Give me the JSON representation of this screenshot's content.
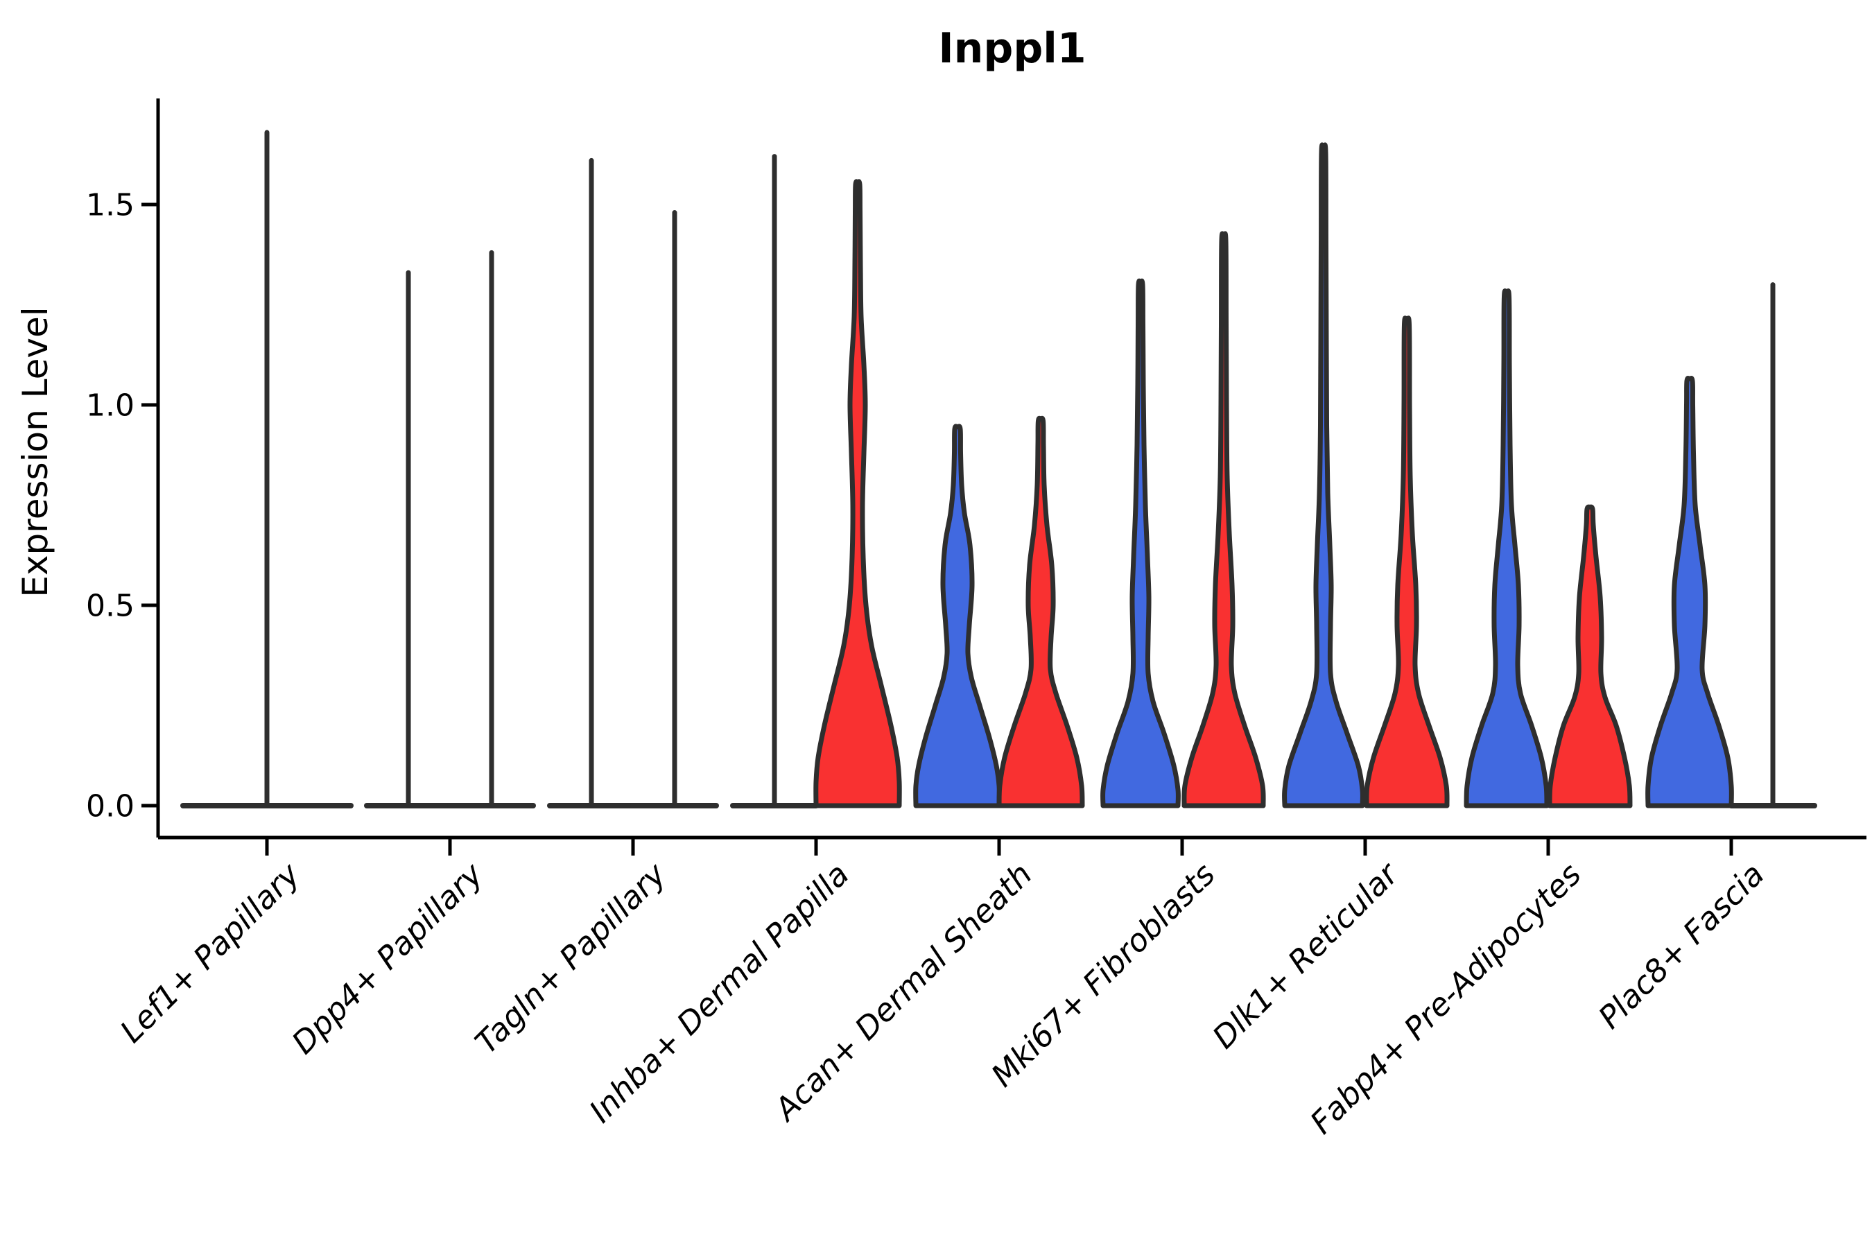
{
  "chart_data": {
    "type": "violin",
    "title": "Inppl1",
    "ylabel": "Expression Level",
    "xlabel": "",
    "ytick_labels": [
      "0.0",
      "0.5",
      "1.0",
      "1.5"
    ],
    "ytick_values": [
      0.0,
      0.5,
      1.0,
      1.5
    ],
    "ylim": [
      -0.08,
      1.77
    ],
    "grid": false,
    "legend": null,
    "colors": {
      "group_a_fill": "#4169E0",
      "group_b_fill": "#F93131",
      "outline": "#2E2E2E",
      "axis": "#000000"
    },
    "note": "Split violin plot; per category: left violin = group A (blue), right violin = group B (red); collapsed violins are near-zero-width spikes. max = top of each violin (max expression).",
    "categories": [
      {
        "label": "Lef1+ Papillary",
        "violins": [
          {
            "side": "full",
            "kind": "collapsed",
            "color": "none",
            "max": 1.68,
            "base_hw": 121
          }
        ]
      },
      {
        "label": "Dpp4+ Papillary",
        "violins": [
          {
            "side": "left",
            "kind": "collapsed",
            "color": "blue",
            "max": 1.33,
            "base_hw": 60
          },
          {
            "side": "right",
            "kind": "collapsed",
            "color": "red",
            "max": 1.38,
            "base_hw": 60
          }
        ]
      },
      {
        "label": "Tagln+ Papillary",
        "violins": [
          {
            "side": "left",
            "kind": "collapsed",
            "color": "blue",
            "max": 1.61,
            "base_hw": 60
          },
          {
            "side": "right",
            "kind": "collapsed",
            "color": "red",
            "max": 1.48,
            "base_hw": 60
          }
        ]
      },
      {
        "label": "Inhba+ Dermal Papilla",
        "violins": [
          {
            "side": "left",
            "kind": "collapsed",
            "color": "blue",
            "max": 1.62,
            "base_hw": 60
          },
          {
            "side": "right",
            "kind": "body",
            "color": "red",
            "max": 1.55,
            "profile": [
              [
                0,
                60
              ],
              [
                0.06,
                60
              ],
              [
                0.12,
                57
              ],
              [
                0.2,
                48
              ],
              [
                0.3,
                34
              ],
              [
                0.4,
                20
              ],
              [
                0.5,
                12
              ],
              [
                0.62,
                8
              ],
              [
                0.75,
                7
              ],
              [
                0.88,
                9
              ],
              [
                1.0,
                11
              ],
              [
                1.1,
                9
              ],
              [
                1.22,
                5
              ],
              [
                1.35,
                4
              ],
              [
                1.48,
                3.5
              ],
              [
                1.55,
                3
              ]
            ]
          }
        ]
      },
      {
        "label": "Acan+ Dermal Sheath",
        "violins": [
          {
            "side": "left",
            "kind": "body",
            "color": "blue",
            "max": 0.94,
            "profile": [
              [
                0,
                60
              ],
              [
                0.05,
                60
              ],
              [
                0.1,
                56
              ],
              [
                0.17,
                46
              ],
              [
                0.25,
                32
              ],
              [
                0.32,
                20
              ],
              [
                0.38,
                15
              ],
              [
                0.45,
                17
              ],
              [
                0.55,
                21
              ],
              [
                0.65,
                18
              ],
              [
                0.73,
                10
              ],
              [
                0.8,
                6
              ],
              [
                0.88,
                4.5
              ],
              [
                0.94,
                4
              ]
            ]
          },
          {
            "side": "right",
            "kind": "body",
            "color": "red",
            "max": 0.96,
            "profile": [
              [
                0,
                60
              ],
              [
                0.05,
                59
              ],
              [
                0.12,
                52
              ],
              [
                0.2,
                38
              ],
              [
                0.28,
                22
              ],
              [
                0.34,
                14
              ],
              [
                0.42,
                15
              ],
              [
                0.5,
                18
              ],
              [
                0.6,
                16
              ],
              [
                0.7,
                9
              ],
              [
                0.8,
                5
              ],
              [
                0.9,
                4
              ],
              [
                0.96,
                3.5
              ]
            ]
          }
        ]
      },
      {
        "label": "Mki67+ Fibroblasts",
        "violins": [
          {
            "side": "left",
            "kind": "body",
            "color": "blue",
            "max": 1.3,
            "profile": [
              [
                0,
                54
              ],
              [
                0.04,
                54
              ],
              [
                0.1,
                48
              ],
              [
                0.18,
                34
              ],
              [
                0.26,
                18
              ],
              [
                0.33,
                11
              ],
              [
                0.42,
                11
              ],
              [
                0.52,
                12
              ],
              [
                0.62,
                10
              ],
              [
                0.75,
                7
              ],
              [
                0.9,
                5
              ],
              [
                1.05,
                4
              ],
              [
                1.2,
                3.5
              ],
              [
                1.3,
                3
              ]
            ]
          },
          {
            "side": "right",
            "kind": "body",
            "color": "red",
            "max": 1.41,
            "profile": [
              [
                0,
                57
              ],
              [
                0.05,
                56
              ],
              [
                0.12,
                46
              ],
              [
                0.2,
                30
              ],
              [
                0.28,
                16
              ],
              [
                0.35,
                11
              ],
              [
                0.45,
                13
              ],
              [
                0.55,
                12
              ],
              [
                0.68,
                8
              ],
              [
                0.82,
                5
              ],
              [
                1.0,
                4
              ],
              [
                1.2,
                3.5
              ],
              [
                1.41,
                3
              ]
            ]
          }
        ]
      },
      {
        "label": "Dlk1+ Reticular",
        "violins": [
          {
            "side": "left",
            "kind": "body",
            "color": "blue",
            "max": 1.63,
            "profile": [
              [
                0,
                56
              ],
              [
                0.04,
                56
              ],
              [
                0.1,
                50
              ],
              [
                0.18,
                34
              ],
              [
                0.26,
                18
              ],
              [
                0.33,
                10
              ],
              [
                0.45,
                10
              ],
              [
                0.55,
                11
              ],
              [
                0.65,
                9
              ],
              [
                0.78,
                6
              ],
              [
                0.95,
                4.5
              ],
              [
                1.15,
                4
              ],
              [
                1.4,
                3.5
              ],
              [
                1.63,
                3
              ]
            ]
          },
          {
            "side": "right",
            "kind": "body",
            "color": "red",
            "max": 1.2,
            "profile": [
              [
                0,
                58
              ],
              [
                0.05,
                57
              ],
              [
                0.12,
                48
              ],
              [
                0.2,
                32
              ],
              [
                0.28,
                17
              ],
              [
                0.35,
                12
              ],
              [
                0.45,
                14
              ],
              [
                0.55,
                13
              ],
              [
                0.68,
                8
              ],
              [
                0.82,
                5
              ],
              [
                1.0,
                4
              ],
              [
                1.2,
                3.5
              ]
            ]
          }
        ]
      },
      {
        "label": "Fabp4+ Pre-Adipocytes",
        "violins": [
          {
            "side": "left",
            "kind": "body",
            "color": "blue",
            "max": 1.27,
            "profile": [
              [
                0,
                58
              ],
              [
                0.05,
                57
              ],
              [
                0.12,
                50
              ],
              [
                0.2,
                36
              ],
              [
                0.28,
                20
              ],
              [
                0.35,
                16
              ],
              [
                0.45,
                18
              ],
              [
                0.55,
                17
              ],
              [
                0.65,
                12
              ],
              [
                0.75,
                7
              ],
              [
                0.9,
                5
              ],
              [
                1.1,
                4
              ],
              [
                1.27,
                3.5
              ]
            ]
          },
          {
            "side": "right",
            "kind": "body",
            "color": "red",
            "max": 0.74,
            "profile": [
              [
                0,
                58
              ],
              [
                0.05,
                57
              ],
              [
                0.12,
                50
              ],
              [
                0.2,
                38
              ],
              [
                0.27,
                22
              ],
              [
                0.33,
                16
              ],
              [
                0.42,
                17
              ],
              [
                0.52,
                15
              ],
              [
                0.62,
                9
              ],
              [
                0.7,
                5
              ],
              [
                0.74,
                4
              ]
            ]
          }
        ]
      },
      {
        "label": "Plac8+ Fascia",
        "violins": [
          {
            "side": "left",
            "kind": "body",
            "color": "blue",
            "max": 1.06,
            "profile": [
              [
                0,
                60
              ],
              [
                0.05,
                60
              ],
              [
                0.12,
                55
              ],
              [
                0.2,
                42
              ],
              [
                0.28,
                26
              ],
              [
                0.34,
                18
              ],
              [
                0.45,
                22
              ],
              [
                0.55,
                22
              ],
              [
                0.65,
                15
              ],
              [
                0.75,
                8
              ],
              [
                0.88,
                5.5
              ],
              [
                1.0,
                4.5
              ],
              [
                1.06,
                4
              ]
            ]
          },
          {
            "side": "right",
            "kind": "collapsed",
            "color": "red",
            "max": 1.3,
            "base_hw": 60
          }
        ]
      }
    ]
  }
}
